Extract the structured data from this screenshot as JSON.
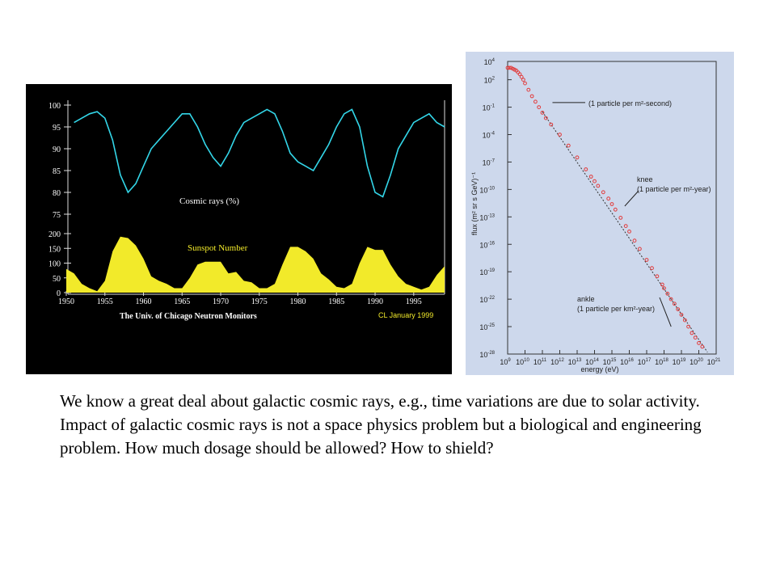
{
  "caption": "We know a great deal about galactic cosmic rays, e.g., time variations are due to solar activity.  Impact of galactic cosmic rays is not a space physics problem but a biological and engineering problem.  How much dosage should be allowed?  How to shield?",
  "colors": {
    "cosmic_line": "#33d6e8",
    "sunspot_fill": "#f2ea2a",
    "flux_points": "#e23a3a",
    "left_bg": "#000000",
    "right_bg": "#cdd8ec"
  },
  "chart_data": [
    {
      "type": "area",
      "title": "",
      "cosmic_label": "Cosmic rays (%)",
      "sunspot_label": "Sunspot Number",
      "credit": "The Univ. of Chicago Neutron Monitors",
      "date_label": "CL January 1999",
      "x_ticks": [
        "1950",
        "1955",
        "1960",
        "1965",
        "1970",
        "1975",
        "1980",
        "1985",
        "1990",
        "1995"
      ],
      "cosmic_ticks": [
        "100",
        "95",
        "90",
        "85",
        "80",
        "75"
      ],
      "sunspot_ticks": [
        "200",
        "150",
        "100",
        "50",
        "0"
      ],
      "cosmic_ylim": [
        75,
        100
      ],
      "sunspot_ylim": [
        0,
        200
      ],
      "xlim": [
        1950,
        1999
      ],
      "series": [
        {
          "name": "Cosmic rays (%)",
          "x": [
            1951,
            1952,
            1953,
            1954,
            1955,
            1956,
            1957,
            1958,
            1959,
            1960,
            1961,
            1962,
            1963,
            1964,
            1965,
            1966,
            1967,
            1968,
            1969,
            1970,
            1971,
            1972,
            1973,
            1974,
            1975,
            1976,
            1977,
            1978,
            1979,
            1980,
            1981,
            1982,
            1983,
            1984,
            1985,
            1986,
            1987,
            1988,
            1989,
            1990,
            1991,
            1992,
            1993,
            1994,
            1995,
            1996,
            1997,
            1998,
            1999
          ],
          "y": [
            96,
            97,
            98,
            98.5,
            97,
            92,
            84,
            80,
            82,
            86,
            90,
            92,
            94,
            96,
            98,
            98,
            95,
            91,
            88,
            86,
            89,
            93,
            96,
            97,
            98,
            99,
            98,
            94,
            89,
            87,
            86,
            85,
            88,
            91,
            95,
            98,
            99,
            95,
            86,
            80,
            79,
            84,
            90,
            93,
            96,
            97,
            98,
            96,
            95
          ]
        },
        {
          "name": "Sunspot Number",
          "x": [
            1950,
            1951,
            1952,
            1953,
            1954,
            1955,
            1956,
            1957,
            1958,
            1959,
            1960,
            1961,
            1962,
            1963,
            1964,
            1965,
            1966,
            1967,
            1968,
            1969,
            1970,
            1971,
            1972,
            1973,
            1974,
            1975,
            1976,
            1977,
            1978,
            1979,
            1980,
            1981,
            1982,
            1983,
            1984,
            1985,
            1986,
            1987,
            1988,
            1989,
            1990,
            1991,
            1992,
            1993,
            1994,
            1995,
            1996,
            1997,
            1998,
            1999
          ],
          "y": [
            80,
            65,
            30,
            15,
            5,
            40,
            140,
            190,
            185,
            160,
            115,
            55,
            40,
            30,
            15,
            15,
            50,
            95,
            105,
            105,
            105,
            65,
            70,
            40,
            35,
            15,
            15,
            30,
            95,
            155,
            155,
            140,
            115,
            65,
            45,
            20,
            15,
            30,
            100,
            155,
            145,
            145,
            95,
            55,
            30,
            20,
            10,
            20,
            60,
            90
          ]
        }
      ]
    },
    {
      "type": "scatter",
      "xlabel": "energy (eV)",
      "ylabel": "flux (m² sr s GeV)⁻¹",
      "log_x": true,
      "log_y": true,
      "xlim": [
        1000000000.0,
        1e+21
      ],
      "ylim": [
        1e-28,
        10000.0
      ],
      "x_ticks": [
        {
          "b": "10",
          "e": "9"
        },
        {
          "b": "10",
          "e": "10"
        },
        {
          "b": "10",
          "e": "11"
        },
        {
          "b": "10",
          "e": "12"
        },
        {
          "b": "10",
          "e": "13"
        },
        {
          "b": "10",
          "e": "14"
        },
        {
          "b": "10",
          "e": "15"
        },
        {
          "b": "10",
          "e": "16"
        },
        {
          "b": "10",
          "e": "17"
        },
        {
          "b": "10",
          "e": "18"
        },
        {
          "b": "10",
          "e": "19"
        },
        {
          "b": "10",
          "e": "20"
        },
        {
          "b": "10",
          "e": "21"
        }
      ],
      "y_ticks": [
        {
          "b": "10",
          "e": "4"
        },
        {
          "b": "10",
          "e": "2"
        },
        {
          "b": "10",
          "e": "-1"
        },
        {
          "b": "10",
          "e": "-4"
        },
        {
          "b": "10",
          "e": "-7"
        },
        {
          "b": "10",
          "e": "-10"
        },
        {
          "b": "10",
          "e": "-13"
        },
        {
          "b": "10",
          "e": "-16"
        },
        {
          "b": "10",
          "e": "-19"
        },
        {
          "b": "10",
          "e": "-22"
        },
        {
          "b": "10",
          "e": "-25"
        },
        {
          "b": "10",
          "e": "-28"
        }
      ],
      "annotations": [
        {
          "name": "one-per-m2-second",
          "lines": [
            "(1 particle per m²-second)"
          ],
          "x_log": 11.3,
          "y_log": -0.5
        },
        {
          "name": "knee",
          "lines": [
            "knee",
            "(1 particle per m²-year)"
          ],
          "x_log": 15.6,
          "y_log": -12
        },
        {
          "name": "ankle",
          "lines": [
            "ankle",
            "(1 particle per km²-year)"
          ],
          "x_log": 18.5,
          "y_log": -25
        }
      ],
      "series": [
        {
          "name": "",
          "points": [
            [
              9.0,
              3.3
            ],
            [
              9.1,
              3.3
            ],
            [
              9.2,
              3.3
            ],
            [
              9.3,
              3.2
            ],
            [
              9.4,
              3.1
            ],
            [
              9.5,
              3.0
            ],
            [
              9.6,
              2.8
            ],
            [
              9.7,
              2.6
            ],
            [
              9.8,
              2.3
            ],
            [
              9.9,
              2.0
            ],
            [
              10.0,
              1.6
            ],
            [
              10.2,
              0.9
            ],
            [
              10.4,
              0.2
            ],
            [
              10.6,
              -0.4
            ],
            [
              10.8,
              -1.0
            ],
            [
              11.0,
              -1.6
            ],
            [
              11.2,
              -2.2
            ],
            [
              11.5,
              -2.9
            ],
            [
              12.0,
              -4.0
            ],
            [
              12.5,
              -5.2
            ],
            [
              13.0,
              -6.5
            ],
            [
              13.5,
              -7.8
            ],
            [
              13.8,
              -8.6
            ],
            [
              14.0,
              -9.1
            ],
            [
              14.2,
              -9.6
            ],
            [
              14.5,
              -10.3
            ],
            [
              14.8,
              -11.0
            ],
            [
              15.0,
              -11.6
            ],
            [
              15.2,
              -12.2
            ],
            [
              15.5,
              -13.1
            ],
            [
              15.8,
              -14.0
            ],
            [
              16.0,
              -14.6
            ],
            [
              16.3,
              -15.6
            ],
            [
              16.6,
              -16.5
            ],
            [
              17.0,
              -17.7
            ],
            [
              17.3,
              -18.6
            ],
            [
              17.6,
              -19.5
            ],
            [
              17.9,
              -20.4
            ],
            [
              18.0,
              -20.8
            ],
            [
              18.2,
              -21.4
            ],
            [
              18.4,
              -22.0
            ],
            [
              18.6,
              -22.5
            ],
            [
              18.8,
              -23.1
            ],
            [
              19.0,
              -23.7
            ],
            [
              19.2,
              -24.3
            ],
            [
              19.4,
              -25.0
            ],
            [
              19.6,
              -25.7
            ],
            [
              19.8,
              -26.2
            ],
            [
              20.0,
              -26.8
            ],
            [
              20.2,
              -27.2
            ]
          ]
        }
      ]
    }
  ]
}
